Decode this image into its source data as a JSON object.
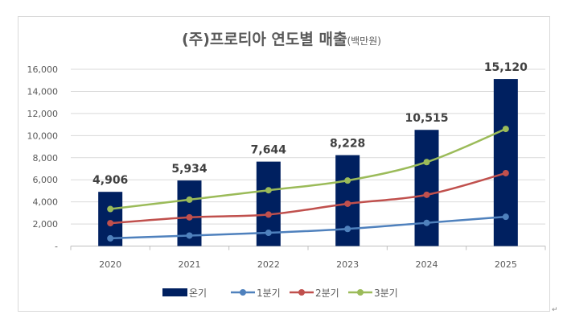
{
  "chart_data": {
    "type": "bar",
    "title": "(주)프로티아 연도별 매출",
    "title_unit": "(백만원)",
    "categories": [
      "2020",
      "2021",
      "2022",
      "2023",
      "2024",
      "2025"
    ],
    "ylim": [
      0,
      16000
    ],
    "yticks": [
      0,
      2000,
      4000,
      6000,
      8000,
      10000,
      12000,
      14000,
      16000
    ],
    "ytick_labels": [
      "-",
      "2,000",
      "4,000",
      "6,000",
      "8,000",
      "10,000",
      "12,000",
      "14,000",
      "16,000"
    ],
    "grid": true,
    "legend_position": "bottom",
    "bars": {
      "name": "온기",
      "color": "#002060",
      "values": [
        4906,
        5934,
        7644,
        8228,
        10515,
        15120
      ],
      "labels": [
        "4,906",
        "5,934",
        "7,644",
        "8,228",
        "10,515",
        "15,120"
      ]
    },
    "series": [
      {
        "name": "1분기",
        "color": "#4F81BD",
        "values": [
          700,
          950,
          1200,
          1550,
          2100,
          2650
        ]
      },
      {
        "name": "2분기",
        "color": "#C0504D",
        "values": [
          2070,
          2600,
          2850,
          3830,
          4640,
          6600
        ]
      },
      {
        "name": "3분기",
        "color": "#9BBB59",
        "values": [
          3350,
          4200,
          5050,
          5930,
          7600,
          10600
        ]
      }
    ]
  }
}
